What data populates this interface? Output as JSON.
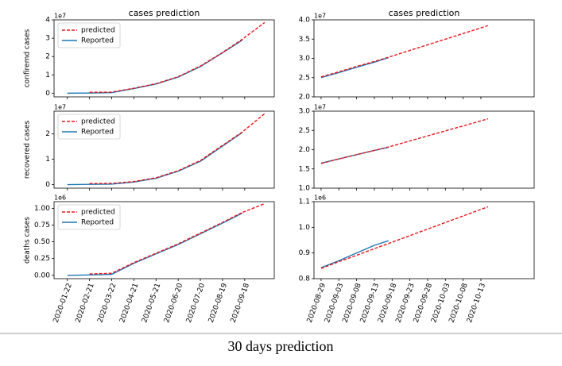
{
  "chart_data": [
    {
      "type": "line",
      "title": "cases prediction",
      "ylabel": "confiremd cases",
      "y_offset_label": "1e7",
      "x": [
        "2020-01-22",
        "2020-02-21",
        "2020-03-22",
        "2020-04-21",
        "2020-05-21",
        "2020-06-20",
        "2020-07-20",
        "2020-08-19",
        "2020-09-15",
        "2020-10-15"
      ],
      "series": [
        {
          "name": "predicted",
          "color": "#e8161b",
          "style": "dashed",
          "values": [
            null,
            0.05,
            0.06,
            0.27,
            0.52,
            0.9,
            1.48,
            2.22,
            2.95,
            3.85
          ]
        },
        {
          "name": "Reported",
          "color": "#1f77b4",
          "style": "solid",
          "values": [
            0,
            0.01,
            0.03,
            0.25,
            0.5,
            0.88,
            1.45,
            2.2,
            2.9,
            null
          ]
        }
      ],
      "xlim": [
        "2020-01-04",
        "2020-10-28"
      ],
      "ylim": [
        -0.2,
        4.0
      ],
      "yticks": [
        0,
        1,
        2,
        3,
        4
      ],
      "legend": "upper left"
    },
    {
      "type": "line",
      "title": "cases prediction",
      "y_offset_label": "1e7",
      "x": [
        "2020-08-29",
        "2020-09-03",
        "2020-09-08",
        "2020-09-13",
        "2020-09-17",
        "2020-10-15"
      ],
      "series": [
        {
          "name": "predicted",
          "color": "#e8161b",
          "style": "dashed",
          "values": [
            2.52,
            2.65,
            2.79,
            2.92,
            3.03,
            3.85
          ]
        },
        {
          "name": "Reported",
          "color": "#1f77b4",
          "style": "solid",
          "values": [
            2.5,
            2.63,
            2.77,
            2.9,
            3.02,
            null
          ]
        }
      ],
      "xlim": [
        "2020-08-27",
        "2020-10-28"
      ],
      "ylim": [
        2.0,
        4.0
      ],
      "yticks": [
        {
          "value": 2.0,
          "label": "2.0"
        },
        {
          "value": 2.5,
          "label": "2.5"
        },
        {
          "value": 3.0,
          "label": "3.0"
        },
        {
          "value": 3.5,
          "label": "3.5"
        },
        {
          "value": 4.0,
          "label": "4.0"
        }
      ]
    },
    {
      "type": "line",
      "ylabel": "recovered cases",
      "y_offset_label": "1e7",
      "x": [
        "2020-01-22",
        "2020-02-21",
        "2020-03-22",
        "2020-04-21",
        "2020-05-21",
        "2020-06-20",
        "2020-07-20",
        "2020-08-19",
        "2020-09-15",
        "2020-10-15"
      ],
      "series": [
        {
          "name": "predicted",
          "color": "#e8161b",
          "style": "dashed",
          "values": [
            null,
            0.04,
            0.05,
            0.12,
            0.27,
            0.55,
            0.95,
            1.55,
            2.08,
            2.8
          ]
        },
        {
          "name": "Reported",
          "color": "#1f77b4",
          "style": "solid",
          "values": [
            0,
            0.01,
            0.02,
            0.1,
            0.25,
            0.53,
            0.92,
            1.52,
            2.06,
            null
          ]
        }
      ],
      "xlim": [
        "2020-01-04",
        "2020-10-28"
      ],
      "ylim": [
        -0.14,
        2.9
      ],
      "yticks": [
        0,
        1,
        2
      ],
      "legend": "upper left"
    },
    {
      "type": "line",
      "y_offset_label": "1e7",
      "x": [
        "2020-08-29",
        "2020-09-03",
        "2020-09-08",
        "2020-09-13",
        "2020-09-17",
        "2020-10-15"
      ],
      "series": [
        {
          "name": "predicted",
          "color": "#e8161b",
          "style": "dashed",
          "values": [
            1.64,
            1.76,
            1.87,
            1.98,
            2.07,
            2.8
          ]
        },
        {
          "name": "Reported",
          "color": "#1f77b4",
          "style": "solid",
          "values": [
            1.65,
            1.76,
            1.87,
            1.98,
            2.06,
            null
          ]
        }
      ],
      "xlim": [
        "2020-08-27",
        "2020-10-28"
      ],
      "ylim": [
        1.0,
        3.0
      ],
      "yticks": [
        {
          "value": 1.0,
          "label": "1.0"
        },
        {
          "value": 1.5,
          "label": "1.5"
        },
        {
          "value": 2.0,
          "label": "2.0"
        },
        {
          "value": 2.5,
          "label": "2.5"
        },
        {
          "value": 3.0,
          "label": "3.0"
        }
      ]
    },
    {
      "type": "line",
      "ylabel": "deaths cases",
      "y_offset_label": "1e6",
      "x": [
        "2020-01-22",
        "2020-02-21",
        "2020-03-22",
        "2020-04-21",
        "2020-05-21",
        "2020-06-20",
        "2020-07-20",
        "2020-08-19",
        "2020-09-15",
        "2020-10-15"
      ],
      "series": [
        {
          "name": "predicted",
          "color": "#e8161b",
          "style": "dashed",
          "values": [
            null,
            0.02,
            0.03,
            0.19,
            0.33,
            0.47,
            0.63,
            0.79,
            0.94,
            1.07
          ]
        },
        {
          "name": "Reported",
          "color": "#1f77b4",
          "style": "solid",
          "values": [
            0,
            0.005,
            0.015,
            0.18,
            0.32,
            0.46,
            0.62,
            0.78,
            0.93,
            null
          ]
        }
      ],
      "xlim": [
        "2020-01-04",
        "2020-10-28"
      ],
      "ylim": [
        -0.05,
        1.1
      ],
      "yticks": [
        {
          "value": 0,
          "label": "0.00"
        },
        {
          "value": 0.25,
          "label": "0.25"
        },
        {
          "value": 0.5,
          "label": "0.50"
        },
        {
          "value": 0.75,
          "label": "0.75"
        },
        {
          "value": 1,
          "label": "1.00"
        }
      ],
      "xticks": [
        "2020-01-22",
        "2020-02-21",
        "2020-03-22",
        "2020-04-21",
        "2020-05-21",
        "2020-06-20",
        "2020-07-20",
        "2020-08-19",
        "2020-09-18"
      ],
      "legend": "upper left"
    },
    {
      "type": "line",
      "y_offset_label": "1e6",
      "x": [
        "2020-08-29",
        "2020-09-03",
        "2020-09-08",
        "2020-09-13",
        "2020-09-17",
        "2020-10-15"
      ],
      "series": [
        {
          "name": "predicted",
          "color": "#e8161b",
          "style": "dashed",
          "values": [
            0.84,
            0.866,
            0.891,
            0.917,
            0.937,
            1.08
          ]
        },
        {
          "name": "Reported",
          "color": "#1f77b4",
          "style": "solid",
          "values": [
            0.843,
            0.87,
            0.9,
            0.93,
            0.948,
            null
          ]
        }
      ],
      "xlim": [
        "2020-08-27",
        "2020-10-28"
      ],
      "ylim": [
        0.8,
        1.1
      ],
      "yticks": [
        {
          "value": 0.8,
          "label": "0.8"
        },
        {
          "value": 0.9,
          "label": "0.9"
        },
        {
          "value": 1.0,
          "label": "1.0"
        },
        {
          "value": 1.1,
          "label": "1.1"
        }
      ],
      "xticks": [
        "2020-08-29",
        "2020-09-03",
        "2020-09-08",
        "2020-09-13",
        "2020-09-18",
        "2020-09-23",
        "2020-09-28",
        "2020-10-03",
        "2020-10-08",
        "2020-10-13"
      ]
    }
  ],
  "caption": "30 days prediction"
}
